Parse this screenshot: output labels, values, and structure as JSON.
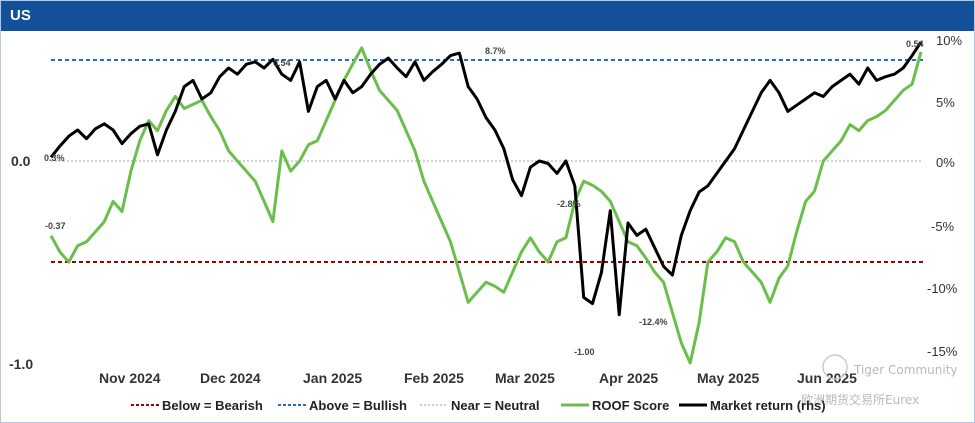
{
  "header": {
    "title": "US"
  },
  "watermark": {
    "line1": "Tiger Community",
    "line2": "欧洲期货交易所Eurex"
  },
  "colors": {
    "header_bg": "#12509a",
    "roof": "#6abf4b",
    "market": "#000000",
    "bearish": "#a00000",
    "bullish": "#1f6fd1",
    "neutral": "#bbbbbb"
  },
  "legend": [
    {
      "label": "Below = Bearish",
      "style": "bearish"
    },
    {
      "label": "Above = Bullish",
      "style": "bullish"
    },
    {
      "label": "Near = Neutral",
      "style": "neutral"
    },
    {
      "label": "ROOF Score",
      "style": "roof"
    },
    {
      "label": "Market return (rhs)",
      "style": "market"
    }
  ],
  "chart_data": {
    "type": "line",
    "title": "US",
    "x_tick_labels": [
      "Nov 2024",
      "Dec 2024",
      "Jan 2025",
      "Feb 2025",
      "Mar 2025",
      "Apr 2025",
      "May 2025",
      "Jun 2025"
    ],
    "left_axis": {
      "ticks": [
        "0.0",
        "-1.0"
      ],
      "range": [
        -1.05,
        0.55
      ]
    },
    "right_axis": {
      "ticks": [
        "10%",
        "5%",
        "0%",
        "-5%",
        "-10%",
        "-15%"
      ],
      "range": [
        -16,
        10
      ]
    },
    "reference_lines": {
      "bullish": 0.54,
      "bearish": -0.54,
      "neutral": 0.0
    },
    "annotations": [
      "0.3%",
      "-0.37",
      "0.54",
      "8.7%",
      "-2.8%",
      "-1.00",
      "-12.4%",
      "0.54"
    ],
    "series": [
      {
        "name": "ROOF Score",
        "axis": "left",
        "values": [
          -0.37,
          -0.45,
          -0.5,
          -0.42,
          -0.4,
          -0.35,
          -0.3,
          -0.2,
          -0.25,
          -0.05,
          0.1,
          0.2,
          0.15,
          0.25,
          0.32,
          0.26,
          0.28,
          0.3,
          0.22,
          0.15,
          0.05,
          0.0,
          -0.05,
          -0.1,
          -0.2,
          -0.3,
          0.05,
          -0.05,
          0.0,
          0.08,
          0.1,
          0.2,
          0.3,
          0.4,
          0.48,
          0.56,
          0.45,
          0.35,
          0.3,
          0.25,
          0.15,
          0.05,
          -0.1,
          -0.2,
          -0.3,
          -0.4,
          -0.55,
          -0.7,
          -0.65,
          -0.6,
          -0.62,
          -0.65,
          -0.55,
          -0.45,
          -0.38,
          -0.45,
          -0.5,
          -0.4,
          -0.38,
          -0.2,
          -0.1,
          -0.12,
          -0.15,
          -0.2,
          -0.3,
          -0.4,
          -0.42,
          -0.48,
          -0.55,
          -0.6,
          -0.75,
          -0.9,
          -1.0,
          -0.8,
          -0.5,
          -0.45,
          -0.38,
          -0.4,
          -0.5,
          -0.55,
          -0.6,
          -0.7,
          -0.58,
          -0.52,
          -0.35,
          -0.2,
          -0.15,
          0.0,
          0.05,
          0.1,
          0.18,
          0.15,
          0.2,
          0.22,
          0.25,
          0.3,
          0.35,
          0.38,
          0.54
        ]
      },
      {
        "name": "Market return (rhs)",
        "axis": "right",
        "values": [
          0.3,
          1.2,
          2.0,
          2.5,
          1.8,
          2.6,
          3.0,
          2.5,
          1.4,
          2.2,
          2.8,
          3.0,
          0.5,
          2.5,
          4.0,
          6.0,
          6.5,
          5.0,
          5.5,
          6.8,
          7.5,
          7.0,
          7.8,
          8.0,
          7.5,
          8.2,
          7.0,
          6.5,
          8.0,
          4.0,
          6.0,
          6.5,
          5.0,
          6.5,
          5.5,
          6.0,
          7.0,
          7.8,
          8.3,
          7.5,
          6.8,
          8.0,
          6.5,
          7.2,
          7.8,
          8.5,
          8.7,
          6.0,
          5.0,
          3.5,
          2.5,
          1.0,
          -1.5,
          -2.8,
          -0.5,
          0.0,
          -0.2,
          -1.0,
          0.0,
          -2.0,
          -11.0,
          -11.5,
          -9.0,
          -4.0,
          -12.4,
          -5.0,
          -6.0,
          -5.5,
          -7.0,
          -8.5,
          -9.2,
          -6.0,
          -4.0,
          -2.5,
          -2.0,
          -1.0,
          0.0,
          1.0,
          2.5,
          4.0,
          5.5,
          6.5,
          5.5,
          4.0,
          4.5,
          5.0,
          5.5,
          5.2,
          6.0,
          6.5,
          7.0,
          6.2,
          7.5,
          6.5,
          6.8,
          7.0,
          7.5,
          8.5,
          9.6
        ]
      }
    ]
  }
}
